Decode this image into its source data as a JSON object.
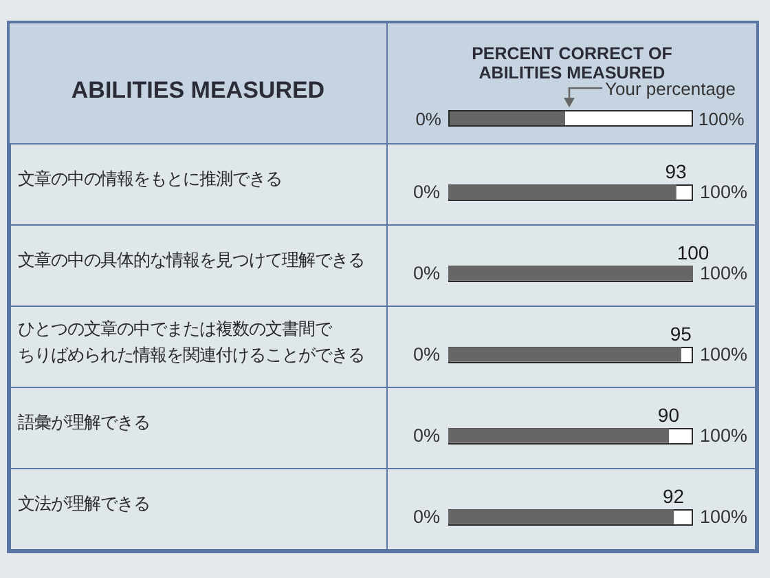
{
  "chart_data": {
    "type": "bar",
    "orientation": "horizontal",
    "xlabel": "PERCENT CORRECT OF ABILITIES MEASURED",
    "ylabel": "ABILITIES MEASURED",
    "categories": [
      "文章の中の情報をもとに推測できる",
      "文章の中の具体的な情報を見つけて理解できる",
      "ひとつの文章の中でまたは複数の文書間でちりばめられた情報を関連付けることができる",
      "語彙が理解できる",
      "文法が理解できる"
    ],
    "series": [
      {
        "name": "Your percentage",
        "color": "#666666",
        "values": [
          93,
          100,
          95,
          90,
          92
        ]
      }
    ],
    "xlim": [
      0,
      100
    ],
    "annotations": [
      "0%",
      "100%"
    ],
    "data_labels": true,
    "legend": "top right"
  }
}
